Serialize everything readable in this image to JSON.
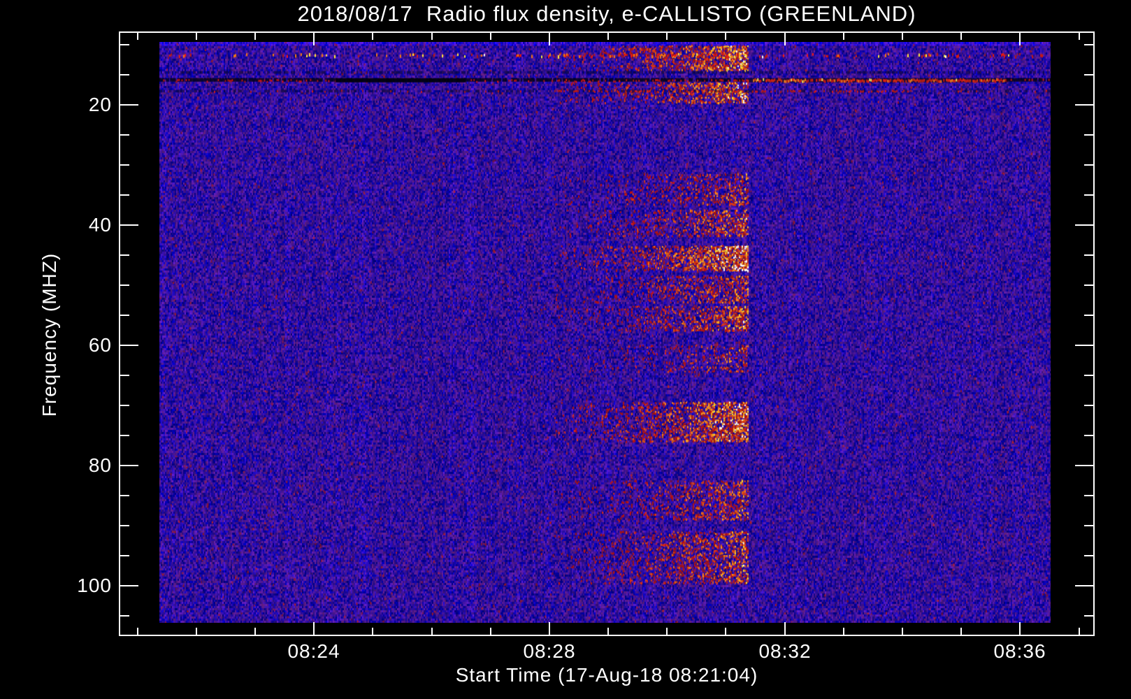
{
  "colors": {
    "background": "#000000",
    "frame": "#ffffff",
    "text": "#ffffff",
    "base_blue": "#2222f0",
    "dark_stripe": "#150ea8",
    "speckle_red": "#cc2012",
    "burst_peak": "#ffee55"
  },
  "chart_data": {
    "type": "heatmap",
    "subtype": "radio-spectrogram",
    "title": "2018/08/17  Radio flux density, e-CALLISTO (GREENLAND)",
    "xlabel": "Start Time (17-Aug-18 08:21:04)",
    "ylabel": "Frequency (MHZ)",
    "x_axis": {
      "axis_start": "08:20:41",
      "axis_end": "08:37:16",
      "major_ticks": [
        {
          "label": "08:24",
          "time": "08:24:00"
        },
        {
          "label": "08:28",
          "time": "08:28:00"
        },
        {
          "label": "08:32",
          "time": "08:32:00"
        },
        {
          "label": "08:36",
          "time": "08:36:00"
        }
      ],
      "minor_tick_interval_min": 1
    },
    "y_axis": {
      "top_mhz": 7.8,
      "bottom_mhz": 108.4,
      "inverted": true,
      "major_ticks": [
        {
          "label": "20",
          "value": 20
        },
        {
          "label": "40",
          "value": 40
        },
        {
          "label": "60",
          "value": 60
        },
        {
          "label": "80",
          "value": 80
        },
        {
          "label": "100",
          "value": 100
        }
      ],
      "minor_tick_interval_mhz": 5
    },
    "data_extent": {
      "time_start": "08:21:22",
      "time_end": "08:36:31",
      "freq_low_mhz": 9.5,
      "freq_high_mhz": 106.2
    },
    "burst": {
      "description": "broadband burst / RFI column group, sharp cutoff at end",
      "time_start": "08:28:05",
      "time_end": "08:31:22",
      "bands": [
        {
          "f_lo": 10.2,
          "f_hi": 14.2,
          "intensity": 0.85
        },
        {
          "f_lo": 16.3,
          "f_hi": 19.6,
          "intensity": 0.75
        },
        {
          "f_lo": 31.5,
          "f_hi": 36.5,
          "intensity": 0.4
        },
        {
          "f_lo": 37.5,
          "f_hi": 42.0,
          "intensity": 0.55
        },
        {
          "f_lo": 43.5,
          "f_hi": 47.5,
          "intensity": 1.0
        },
        {
          "f_lo": 48.5,
          "f_hi": 53.0,
          "intensity": 0.5
        },
        {
          "f_lo": 53.5,
          "f_hi": 57.5,
          "intensity": 0.6
        },
        {
          "f_lo": 60.0,
          "f_hi": 64.5,
          "intensity": 0.3
        },
        {
          "f_lo": 69.5,
          "f_hi": 76.0,
          "intensity": 0.9
        },
        {
          "f_lo": 82.5,
          "f_hi": 89.0,
          "intensity": 0.5
        },
        {
          "f_lo": 91.0,
          "f_hi": 99.5,
          "intensity": 0.55
        }
      ]
    },
    "rfi_lines": [
      {
        "f": 11.6,
        "style": "sparse-bright-speckles"
      },
      {
        "f": 14.5,
        "style": "faint-dark"
      },
      {
        "f": 15.8,
        "style": "segmented",
        "segments": [
          {
            "from": "08:21:22",
            "to": "08:24:22",
            "style": "dark-red-mix"
          },
          {
            "from": "08:24:22",
            "to": "08:26:34",
            "style": "solid-dark"
          },
          {
            "from": "08:26:34",
            "to": "08:31:22",
            "style": "dark-red-mix"
          },
          {
            "from": "08:31:22",
            "to": "08:35:46",
            "style": "bright-red"
          },
          {
            "from": "08:35:46",
            "to": "08:36:31",
            "style": "dark-sparse-red"
          }
        ]
      },
      {
        "f": 17.6,
        "style": "faint-dark-red",
        "red_until": "08:34:10"
      }
    ]
  }
}
